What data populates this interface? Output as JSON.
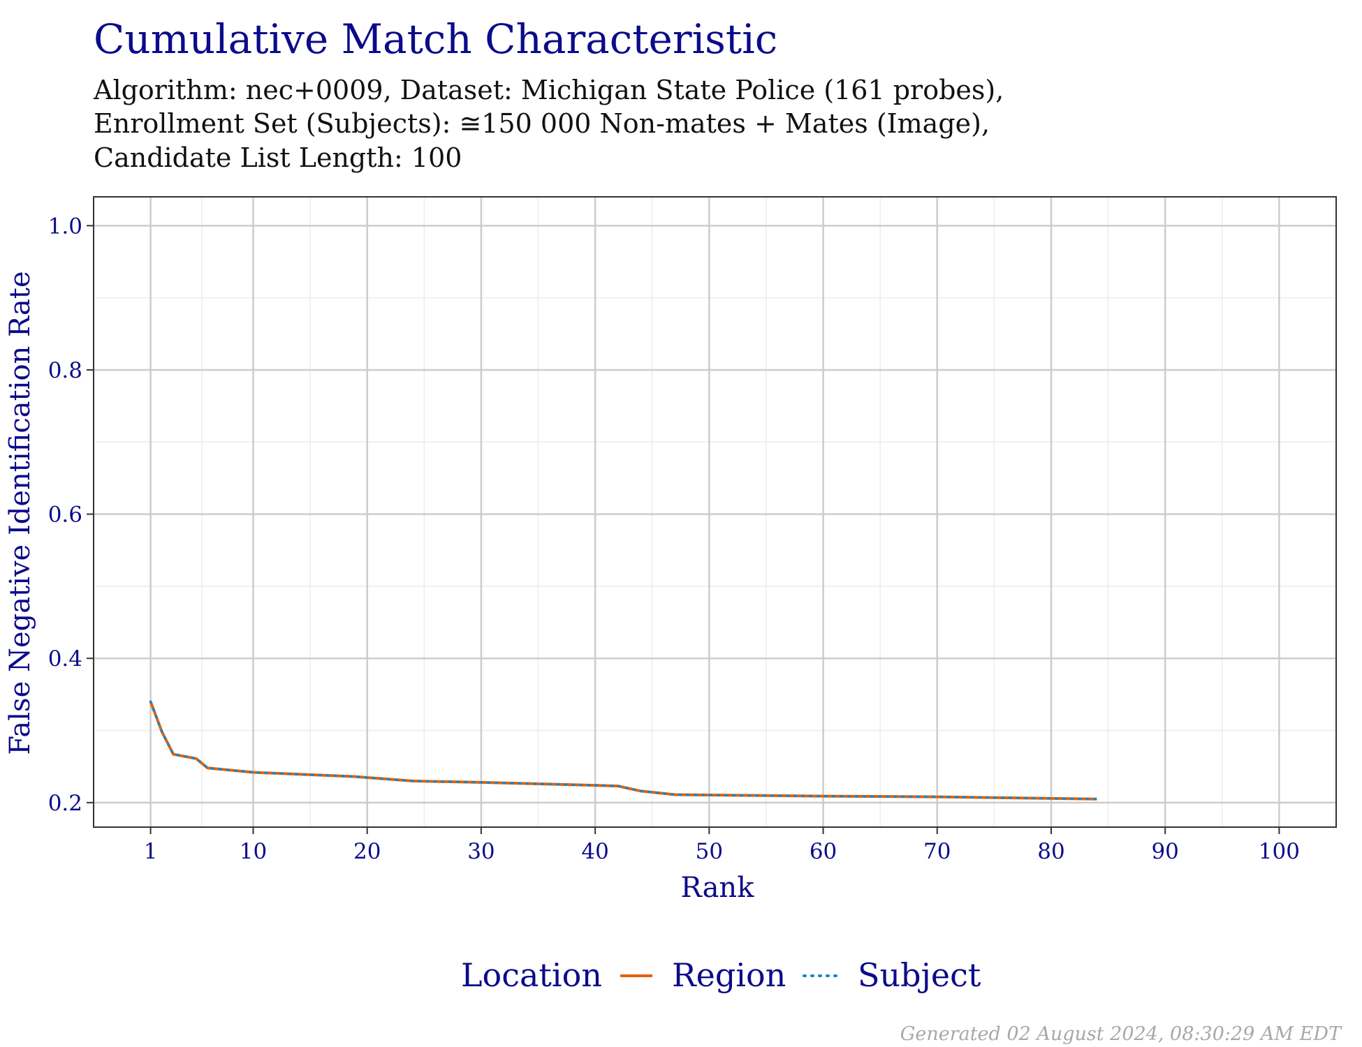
{
  "chart_data": {
    "type": "line",
    "title": "Cumulative Match Characteristic",
    "subtitle_lines": [
      "Algorithm: nec+0009, Dataset: Michigan State Police (161 probes),",
      "Enrollment Set (Subjects): ≅150 000 Non-mates + Mates (Image),",
      "Candidate List Length: 100"
    ],
    "xlabel": "Rank",
    "ylabel": "False Negative Identification Rate",
    "xlim": [
      -4,
      105
    ],
    "ylim": [
      0.166,
      1.04
    ],
    "x_ticks": [
      1,
      10,
      20,
      30,
      40,
      50,
      60,
      70,
      80,
      90,
      100
    ],
    "y_ticks": [
      0.2,
      0.4,
      0.6,
      0.8,
      1.0
    ],
    "y_tick_labels": [
      "0.2",
      "0.4",
      "0.6",
      "0.8",
      "1.0"
    ],
    "grid": true,
    "legend": {
      "title": "Location",
      "placement": "bottom",
      "entries": [
        "Region",
        "Subject"
      ]
    },
    "series": [
      {
        "name": "Region",
        "color": "#e66100",
        "style": "solid",
        "x": [
          1,
          2,
          3,
          5,
          6,
          10,
          19,
          24,
          30,
          40,
          42,
          44,
          47,
          60,
          70,
          84
        ],
        "y": [
          0.34,
          0.298,
          0.267,
          0.261,
          0.248,
          0.242,
          0.236,
          0.23,
          0.228,
          0.224,
          0.223,
          0.216,
          0.211,
          0.209,
          0.208,
          0.205
        ]
      },
      {
        "name": "Subject",
        "color": "#1a85c9",
        "style": "dotted",
        "x": [
          1,
          2,
          3,
          5,
          6,
          10,
          19,
          24,
          30,
          40,
          42,
          44,
          47,
          60,
          70,
          84
        ],
        "y": [
          0.34,
          0.298,
          0.267,
          0.261,
          0.248,
          0.242,
          0.236,
          0.23,
          0.228,
          0.224,
          0.223,
          0.216,
          0.211,
          0.209,
          0.208,
          0.205
        ]
      }
    ]
  },
  "footer": "Generated 02 August 2024, 08:30:29 AM EDT"
}
